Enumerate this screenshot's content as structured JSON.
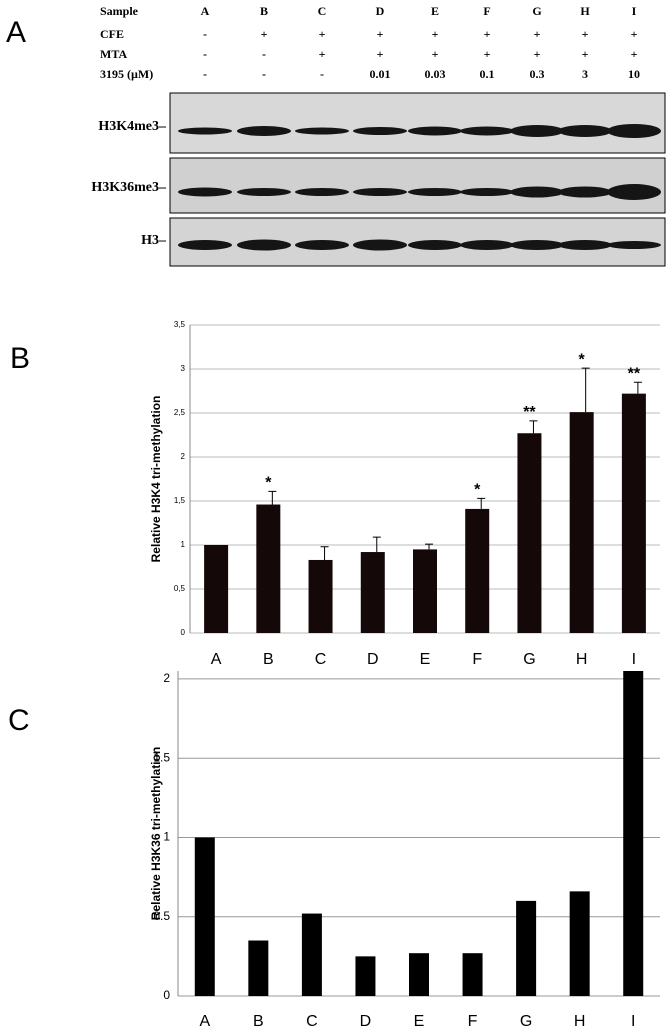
{
  "panel_a": {
    "panel": "A",
    "table": {
      "header": [
        "Sample",
        "A",
        "B",
        "C",
        "D",
        "E",
        "F",
        "G",
        "H",
        "I"
      ],
      "rows": [
        [
          "CFE",
          "-",
          "+",
          "+",
          "+",
          "+",
          "+",
          "+",
          "+",
          "+"
        ],
        [
          "MTA",
          "-",
          "-",
          "+",
          "+",
          "+",
          "+",
          "+",
          "+",
          "+"
        ],
        [
          "3195 (µM)",
          "-",
          "-",
          "-",
          0.01,
          0.03,
          0.1,
          0.3,
          3,
          10
        ]
      ]
    },
    "blots": [
      {
        "label": "H3K4me3–"
      },
      {
        "label": "H3K36me3–"
      },
      {
        "label": "H3–"
      }
    ]
  },
  "chart_data": [
    {
      "type": "bar",
      "panel": "B",
      "y_label": "Relative H3K4 tri-methylation",
      "categories": [
        "A",
        "B",
        "C",
        "D",
        "E",
        "F",
        "G",
        "H",
        "I"
      ],
      "values": [
        1.0,
        1.46,
        0.83,
        0.92,
        0.95,
        1.41,
        2.27,
        2.51,
        2.72
      ],
      "errors": [
        null,
        0.15,
        0.15,
        0.17,
        0.06,
        0.12,
        0.14,
        0.5,
        0.13
      ],
      "significance": [
        null,
        "*",
        null,
        null,
        null,
        "*",
        "**",
        "*",
        "**"
      ],
      "color": "#140808",
      "grid": true,
      "ylim": [
        0,
        3.5
      ],
      "yticks": [
        0,
        {
          "value": 0.5,
          "label": "0,5"
        },
        1,
        {
          "value": 1.5,
          "label": "1,5"
        },
        2,
        {
          "value": 2.5,
          "label": "2,5"
        },
        3,
        {
          "value": 3.5,
          "label": "3,5"
        }
      ]
    },
    {
      "type": "bar",
      "panel": "C",
      "y_label": "Relative H3K36 tri-methylation",
      "categories": [
        "A",
        "B",
        "C",
        "D",
        "E",
        "F",
        "G",
        "H",
        "I"
      ],
      "values": [
        1.0,
        0.35,
        0.52,
        0.25,
        0.27,
        0.27,
        0.6,
        0.66,
        2.05
      ],
      "color": "#000000",
      "grid": true,
      "ylim": [
        0,
        2.05
      ],
      "yticks": [
        0,
        0.5,
        1,
        1.5,
        2
      ]
    }
  ]
}
